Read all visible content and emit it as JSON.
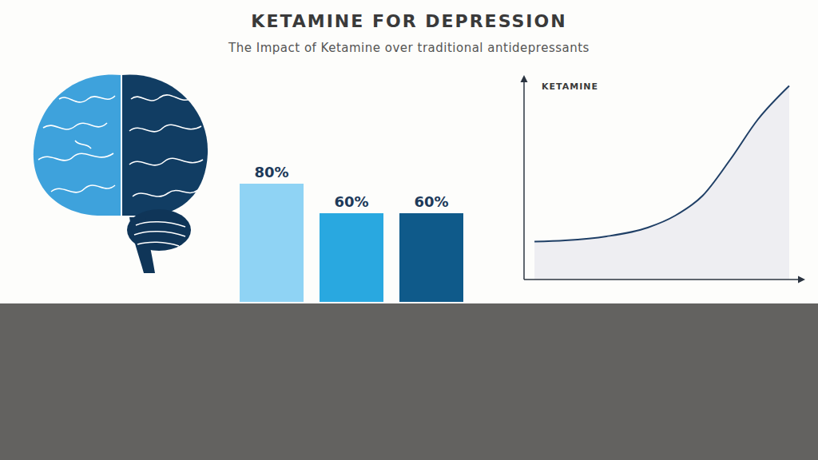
{
  "title": "KETAMINE FOR DEPRESSION",
  "subtitle": "The Impact of Ketamine over traditional antidepressants",
  "chart_data": [
    {
      "type": "bar",
      "categories": [
        null,
        null,
        null
      ],
      "values": [
        80,
        60,
        60
      ],
      "value_labels": [
        "80%",
        "60%",
        "60%"
      ],
      "colors": [
        "#8fd3f4",
        "#29a8e0",
        "#0f5a8a"
      ],
      "data_labels": true,
      "tick_labels": false
    },
    {
      "type": "area",
      "ylabel": "KETAMINE",
      "x": [
        3.8,
        15,
        30,
        45,
        55,
        65,
        75,
        85,
        96.5
      ],
      "values": [
        19,
        19.6,
        21.6,
        26,
        32,
        42,
        60,
        80,
        97
      ],
      "xlim": [
        0,
        100
      ],
      "ylim": [
        0,
        100
      ],
      "color": "#1f3f66",
      "grid": false,
      "tick_labels": false
    }
  ]
}
